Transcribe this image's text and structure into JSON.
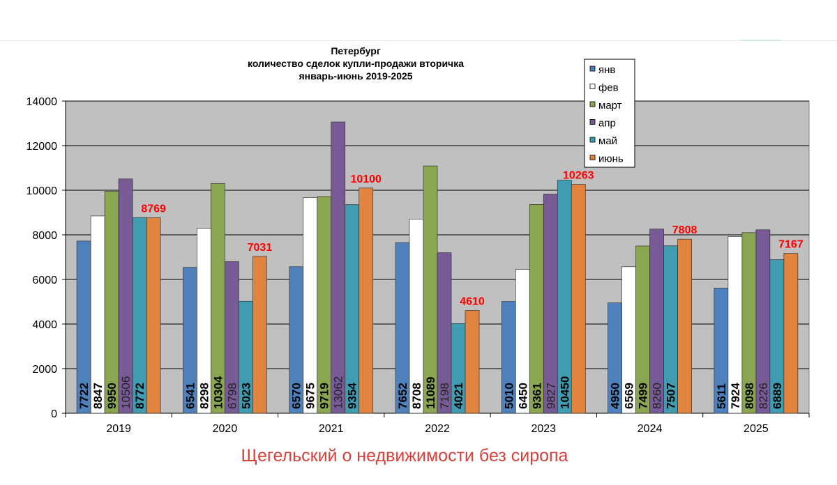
{
  "chart_data": {
    "type": "bar",
    "title": [
      "Петербург",
      "количество сделок купли-продажи вторичка",
      "январь-июнь 2019-2025"
    ],
    "categories": [
      "2019",
      "2020",
      "2021",
      "2022",
      "2023",
      "2024",
      "2025"
    ],
    "series": [
      {
        "name": "янв",
        "color": "#4f81bd",
        "values": [
          7722,
          6541,
          6570,
          7652,
          5010,
          4950,
          5611
        ]
      },
      {
        "name": "фев",
        "color": "#ffffff",
        "values": [
          8847,
          8298,
          9675,
          8708,
          6450,
          6569,
          7924
        ]
      },
      {
        "name": "март",
        "color": "#8aa650",
        "values": [
          9950,
          10304,
          9719,
          11089,
          9361,
          7499,
          8098
        ]
      },
      {
        "name": "апр",
        "color": "#775a96",
        "values": [
          10506,
          6798,
          13062,
          7198,
          9827,
          8260,
          8226
        ]
      },
      {
        "name": "май",
        "color": "#3f9cb1",
        "values": [
          8772,
          5023,
          9354,
          4021,
          10450,
          7507,
          6889
        ]
      },
      {
        "name": "июнь",
        "color": "#e0843f",
        "values": [
          8769,
          7031,
          10100,
          4610,
          10263,
          7808,
          7167
        ]
      }
    ],
    "ylim": [
      0,
      14000
    ],
    "yticks": [
      0,
      2000,
      4000,
      6000,
      8000,
      10000,
      12000,
      14000
    ],
    "grid": true,
    "legend": "top-right",
    "highlight_color": "#ff0000",
    "plot_background": "#c0c0c0"
  },
  "caption": "Щегельский о недвижимости без сиропа"
}
